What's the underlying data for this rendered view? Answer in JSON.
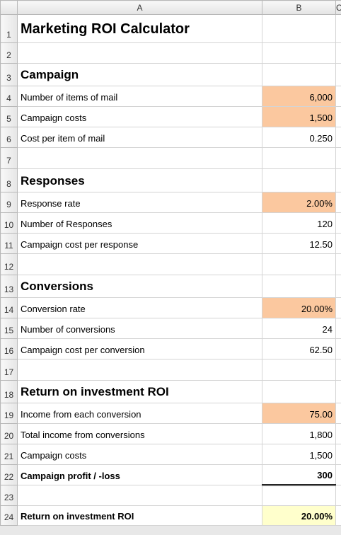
{
  "column_headers": [
    "A",
    "B",
    "C"
  ],
  "rows": [
    {
      "number": "1",
      "label": "Marketing ROI Calculator"
    },
    {
      "number": "2"
    },
    {
      "number": "3",
      "label": "Campaign"
    },
    {
      "number": "4",
      "label": "Number of items of mail",
      "value": "6,000"
    },
    {
      "number": "5",
      "label": "Campaign costs",
      "value": "1,500"
    },
    {
      "number": "6",
      "label": "Cost per item of mail",
      "value": "0.250"
    },
    {
      "number": "7"
    },
    {
      "number": "8",
      "label": "Responses"
    },
    {
      "number": "9",
      "label": "Response rate",
      "value": "2.00%"
    },
    {
      "number": "10",
      "label": "Number of Responses",
      "value": "120"
    },
    {
      "number": "11",
      "label": "Campaign cost per response",
      "value": "12.50"
    },
    {
      "number": "12"
    },
    {
      "number": "13",
      "label": "Conversions"
    },
    {
      "number": "14",
      "label": "Conversion rate",
      "value": "20.00%"
    },
    {
      "number": "15",
      "label": "Number of conversions",
      "value": "24"
    },
    {
      "number": "16",
      "label": "Campaign cost per conversion",
      "value": "62.50"
    },
    {
      "number": "17"
    },
    {
      "number": "18",
      "label": "Return on investment ROI"
    },
    {
      "number": "19",
      "label": "Income from each conversion",
      "value": "75.00"
    },
    {
      "number": "20",
      "label": "Total income from conversions",
      "value": "1,800"
    },
    {
      "number": "21",
      "label": "Campaign costs",
      "value": "1,500"
    },
    {
      "number": "22",
      "label": "Campaign profit / -loss",
      "value": "300"
    },
    {
      "number": "23"
    },
    {
      "number": "24",
      "label": "Return on investment ROI",
      "value": "20.00%"
    }
  ]
}
